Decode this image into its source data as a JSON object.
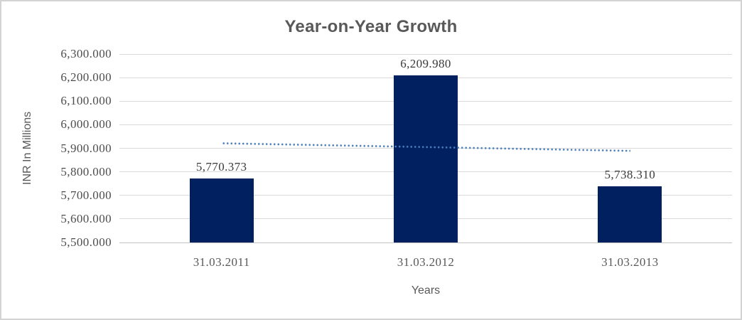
{
  "frame": {
    "background": "#ffffff",
    "border_color": "#d3d3d3"
  },
  "chart_data": {
    "type": "bar",
    "title": "Year-on-Year Growth",
    "xlabel": "Years",
    "ylabel": "INR In Millions",
    "categories": [
      "31.03.2011",
      "31.03.2012",
      "31.03.2013"
    ],
    "values": [
      5770.373,
      6209.98,
      5738.31
    ],
    "data_labels": [
      "5,770.373",
      "6,209.980",
      "5,738.310"
    ],
    "ylim": [
      5500,
      6300
    ],
    "ytick_step": 100,
    "ytick_labels": [
      "6,300.000",
      "6,200.000",
      "6,100.000",
      "6,000.000",
      "5,900.000",
      "5,800.000",
      "5,700.000",
      "5,600.000",
      "5,500.000"
    ],
    "grid": true,
    "legend": "none",
    "trendline": {
      "type": "linear",
      "style": "dotted",
      "start_value": 5922.3,
      "end_value": 5890.2
    },
    "styles": {
      "bar_color": "#002060",
      "trend_color": "#4a7ebb",
      "grid_color": "#d9d9d9",
      "axis_line_color": "#c3c3c3",
      "title_color": "#595959",
      "axis_title_color": "#595959",
      "tick_color": "#4d4d4d",
      "xtick_color": "#595959",
      "label_color": "#3a3a3a"
    }
  }
}
